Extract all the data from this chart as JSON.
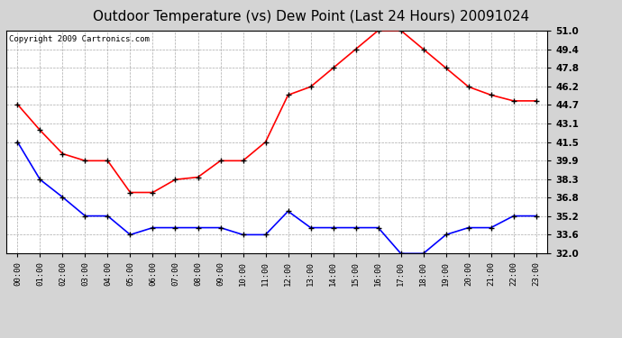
{
  "title": "Outdoor Temperature (vs) Dew Point (Last 24 Hours) 20091024",
  "copyright": "Copyright 2009 Cartronics.com",
  "hours": [
    "00:00",
    "01:00",
    "02:00",
    "03:00",
    "04:00",
    "05:00",
    "06:00",
    "07:00",
    "08:00",
    "09:00",
    "10:00",
    "11:00",
    "12:00",
    "13:00",
    "14:00",
    "15:00",
    "16:00",
    "17:00",
    "18:00",
    "19:00",
    "20:00",
    "21:00",
    "22:00",
    "23:00"
  ],
  "temp": [
    44.7,
    42.5,
    40.5,
    39.9,
    39.9,
    37.2,
    37.2,
    38.3,
    38.5,
    39.9,
    39.9,
    41.5,
    45.5,
    46.2,
    47.8,
    49.4,
    51.0,
    51.0,
    49.4,
    47.8,
    46.2,
    45.5,
    45.0,
    45.0
  ],
  "dewpoint": [
    41.5,
    38.3,
    36.8,
    35.2,
    35.2,
    33.6,
    34.2,
    34.2,
    34.2,
    34.2,
    33.6,
    33.6,
    35.6,
    34.2,
    34.2,
    34.2,
    34.2,
    32.0,
    32.0,
    33.6,
    34.2,
    34.2,
    35.2,
    35.2
  ],
  "ylim": [
    32.0,
    51.0
  ],
  "yticks": [
    32.0,
    33.6,
    35.2,
    36.8,
    38.3,
    39.9,
    41.5,
    43.1,
    44.7,
    46.2,
    47.8,
    49.4,
    51.0
  ],
  "temp_color": "#ff0000",
  "dewpoint_color": "#0000ff",
  "bg_color": "#d4d4d4",
  "plot_bg_color": "#ffffff",
  "grid_color": "#aaaaaa",
  "title_fontsize": 11,
  "copyright_fontsize": 6.5,
  "marker": "+",
  "marker_color": "#000000",
  "marker_size": 5,
  "linewidth": 1.2
}
